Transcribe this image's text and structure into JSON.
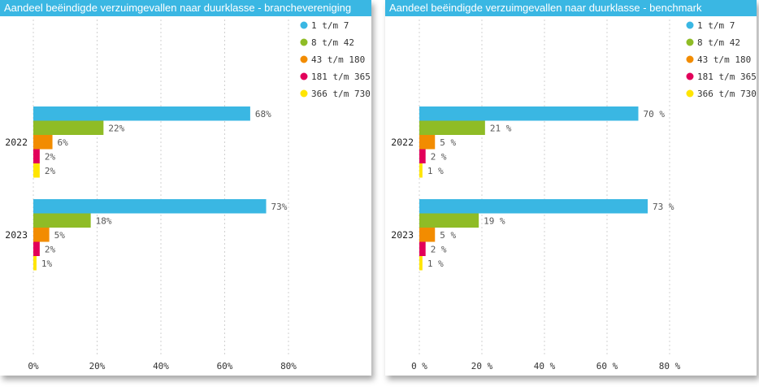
{
  "chart_data": [
    {
      "type": "bar",
      "orientation": "horizontal",
      "title": "Aandeel beëindigde verzuimgevallen naar duurklasse - branchevereniging",
      "categories": [
        "2022",
        "2023"
      ],
      "series": [
        {
          "name": "1 t/m 7",
          "color": "#3ab7e3",
          "values": [
            68,
            73
          ],
          "labels": [
            "68%",
            "73%"
          ]
        },
        {
          "name": "8 t/m 42",
          "color": "#8fbc26",
          "values": [
            22,
            18
          ],
          "labels": [
            "22%",
            "18%"
          ]
        },
        {
          "name": "43 t/m 180",
          "color": "#f28c00",
          "values": [
            6,
            5
          ],
          "labels": [
            "6%",
            "5%"
          ]
        },
        {
          "name": "181 t/m 365",
          "color": "#e2005a",
          "values": [
            2,
            2
          ],
          "labels": [
            "2%",
            "2%"
          ]
        },
        {
          "name": "366 t/m 730",
          "color": "#ffe500",
          "values": [
            2,
            1
          ],
          "labels": [
            "2%",
            "1%"
          ]
        }
      ],
      "xlim": [
        0,
        80
      ],
      "xticks": [
        "0%",
        "20%",
        "40%",
        "60%",
        "80%"
      ],
      "grid": true,
      "legend": "top-right"
    },
    {
      "type": "bar",
      "orientation": "horizontal",
      "title": "Aandeel beëindigde verzuimgevallen naar duurklasse - benchmark",
      "categories": [
        "2022",
        "2023"
      ],
      "series": [
        {
          "name": "1 t/m 7",
          "color": "#3ab7e3",
          "values": [
            70,
            73
          ],
          "labels": [
            "70 %",
            "73 %"
          ]
        },
        {
          "name": "8 t/m 42",
          "color": "#8fbc26",
          "values": [
            21,
            19
          ],
          "labels": [
            "21 %",
            "19 %"
          ]
        },
        {
          "name": "43 t/m 180",
          "color": "#f28c00",
          "values": [
            5,
            5
          ],
          "labels": [
            "5 %",
            "5 %"
          ]
        },
        {
          "name": "181 t/m 365",
          "color": "#e2005a",
          "values": [
            2,
            2
          ],
          "labels": [
            "2 %",
            "2 %"
          ]
        },
        {
          "name": "366 t/m 730",
          "color": "#ffe500",
          "values": [
            1,
            1
          ],
          "labels": [
            "1 %",
            "1 %"
          ]
        }
      ],
      "xlim": [
        0,
        80
      ],
      "xticks": [
        "0 %",
        "20 %",
        "40 %",
        "60 %",
        "80 %"
      ],
      "grid": true,
      "legend": "top-right"
    }
  ]
}
